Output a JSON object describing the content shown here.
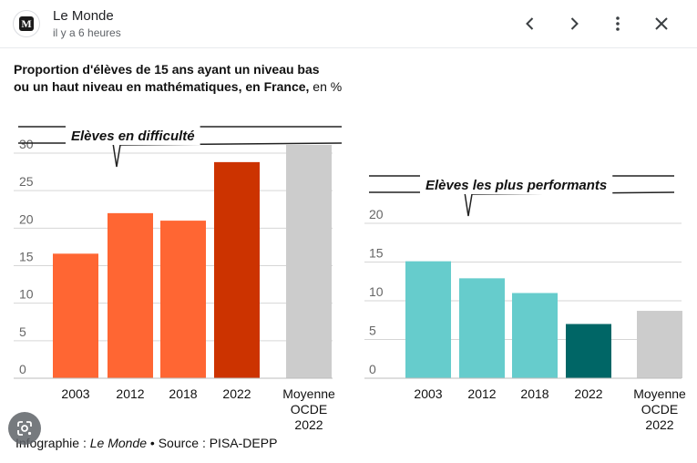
{
  "header": {
    "source_name": "Le Monde",
    "time_ago": "il y a 6 heures",
    "logo_letter": "M"
  },
  "icons": {
    "prev": "chevron-left-icon",
    "next": "chevron-right-icon",
    "more": "more-vert-icon",
    "close": "close-icon",
    "lens": "google-lens-icon"
  },
  "figure": {
    "title_line1": "Proportion d'élèves de 15 ans ayant un niveau bas",
    "title_line2": "ou un haut niveau en mathématiques, en France,",
    "title_unit": "en %",
    "footer_prefix": "Infographie : ",
    "footer_brand": "Le Monde",
    "footer_suffix": " • Source : PISA-DEPP"
  },
  "chart_data": [
    {
      "type": "bar",
      "title": "Elèves en difficulté",
      "categories": [
        "2003",
        "2012",
        "2018",
        "2022",
        "Moyenne OCDE 2022"
      ],
      "values": [
        16.6,
        22.0,
        21.0,
        28.8,
        31.1
      ],
      "colors": [
        "#ff6633",
        "#ff6633",
        "#ff6633",
        "#cc3300",
        "#cccccc"
      ],
      "ylim": [
        0,
        30
      ],
      "yticks": [
        "0",
        "5",
        "10",
        "15",
        "20",
        "25",
        "30"
      ],
      "grid": true
    },
    {
      "type": "bar",
      "title": "Elèves les plus performants",
      "categories": [
        "2003",
        "2012",
        "2018",
        "2022",
        "Moyenne OCDE 2022"
      ],
      "values": [
        15.1,
        12.9,
        11.0,
        7.0,
        8.7
      ],
      "colors": [
        "#66cccc",
        "#66cccc",
        "#66cccc",
        "#006666",
        "#cccccc"
      ],
      "ylim": [
        0,
        20
      ],
      "yticks": [
        "0",
        "5",
        "10",
        "15",
        "20"
      ],
      "grid": true
    }
  ]
}
